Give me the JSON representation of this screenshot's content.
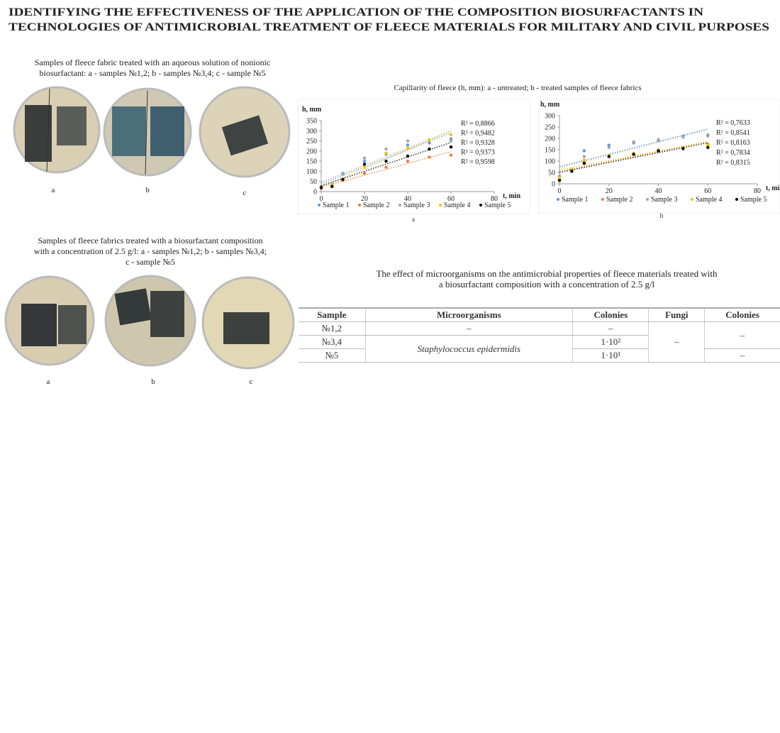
{
  "header": {
    "title": [
      "IDENTIFYING THE EFFECTIVENESS OF THE APPLICATION OF THE COMPOSITION BIOSURFACTANTS IN",
      "TECHNOLOGIES OF ANTIMICROBIAL TREATMENT OF FLEECE MATERIALS FOR MILITARY AND CIVIL PURPOSES"
    ]
  },
  "photos_1": {
    "caption": [
      "Samples of fleece fabric treated with an aqueous solution of nonionic",
      "biosurfactant: a - samples №1,2; b - samples №3,4; c - sample №5"
    ],
    "labels": [
      "a",
      "b",
      "c"
    ]
  },
  "photos_2": {
    "caption": [
      "Samples of fleece fabrics treated with a biosurfactant composition",
      "with a concentration of 2.5 g/l: a - samples №1,2; b - samples №3,4;",
      "c - sample №5"
    ],
    "labels": [
      "a",
      "b",
      "c"
    ]
  },
  "capillarity": {
    "caption": "Capillarity of fleece (h, mm): a - untreated; b - treated samples of fleece fabrics"
  },
  "chart_data": [
    {
      "type": "scatter",
      "label": "a",
      "ylabel": "h, mm",
      "xlabel": "t, min",
      "x": [
        0,
        5,
        10,
        20,
        30,
        40,
        50,
        60
      ],
      "xlim": [
        0,
        80
      ],
      "xticks": [
        0,
        20,
        40,
        60,
        80
      ],
      "ylim": [
        0,
        350
      ],
      "yticks": [
        0,
        50,
        100,
        150,
        200,
        250,
        300,
        350
      ],
      "trendline": true,
      "series": [
        {
          "name": "Sample 1",
          "color": "#5b9bd5",
          "values": [
            20,
            30,
            90,
            150,
            185,
            230,
            240,
            260
          ],
          "trendline_label": "R² = 0,8866"
        },
        {
          "name": "Sample 2",
          "color": "#ed7d31",
          "values": [
            15,
            25,
            55,
            90,
            120,
            150,
            170,
            180
          ],
          "trendline_label": "R² = 0,9482"
        },
        {
          "name": "Sample 3",
          "color": "#a5a5a5",
          "values": [
            25,
            35,
            85,
            165,
            210,
            250,
            255,
            250
          ],
          "trendline_label": "R² = 0,9328"
        },
        {
          "name": "Sample 4",
          "color": "#ffc000",
          "values": [
            20,
            30,
            60,
            120,
            190,
            215,
            255,
            280
          ],
          "trendline_label": "R² = 0,9373"
        },
        {
          "name": "Sample 5",
          "color": "#000000",
          "values": [
            20,
            25,
            60,
            135,
            150,
            175,
            210,
            220
          ],
          "trendline_label": "R² = 0,9598"
        }
      ]
    },
    {
      "type": "scatter",
      "label": "b",
      "ylabel": "h, mm",
      "xlabel": "t, min",
      "x": [
        0,
        5,
        10,
        20,
        30,
        40,
        50,
        60
      ],
      "xlim": [
        0,
        80
      ],
      "xticks": [
        0,
        20,
        40,
        60,
        80
      ],
      "ylim": [
        0,
        300
      ],
      "yticks": [
        0,
        50,
        100,
        150,
        200,
        250,
        300
      ],
      "trendline": true,
      "series": [
        {
          "name": "Sample 1",
          "color": "#5b9bd5",
          "values": [
            30,
            60,
            145,
            170,
            180,
            190,
            210,
            215
          ],
          "trendline_label": "R² = 0,7633"
        },
        {
          "name": "Sample 2",
          "color": "#ed7d31",
          "values": [
            20,
            60,
            95,
            120,
            130,
            145,
            155,
            175
          ],
          "trendline_label": "R² = 0,8541"
        },
        {
          "name": "Sample 3",
          "color": "#a5a5a5",
          "values": [
            35,
            65,
            120,
            160,
            185,
            195,
            205,
            210
          ],
          "trendline_label": "R² = 0,8163"
        },
        {
          "name": "Sample 4",
          "color": "#ffc000",
          "values": [
            25,
            65,
            105,
            125,
            135,
            150,
            160,
            170
          ],
          "trendline_label": "R² = 0,7834"
        },
        {
          "name": "Sample 5",
          "color": "#000000",
          "values": [
            15,
            55,
            90,
            120,
            130,
            145,
            155,
            160
          ],
          "trendline_label": "R² = 0,8315"
        }
      ]
    }
  ],
  "table": {
    "caption": [
      "The effect of microorganisms on the antimicrobial properties of fleece materials treated with",
      "a biosurfactant composition with a concentration of 2.5 g/l"
    ],
    "header": [
      "Sample",
      "Microorganisms",
      "Colonies",
      "Fungi",
      "Colonies"
    ],
    "rows": [
      [
        "№1,2",
        "–",
        "–",
        "–",
        "–"
      ],
      [
        "№3,4",
        "Staphylococcus epidermidis",
        "1·10²"
      ],
      [
        "№5",
        "1·10¹",
        "–"
      ]
    ]
  }
}
